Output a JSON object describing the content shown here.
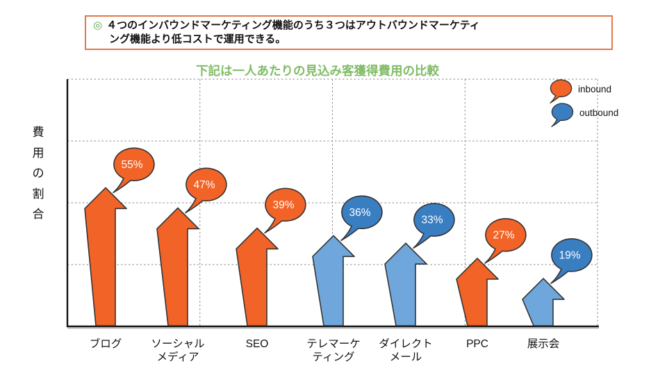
{
  "colors": {
    "inbound": "#F26327",
    "outbound_arrow": "#6FA7DC",
    "outbound_bubble": "#3A7EC2",
    "shape_outline": "#333333",
    "bubble_text": "#FFFFFF",
    "title_green": "#7FBC65",
    "bullet_green": "#55A647",
    "header_border": "#E0784A",
    "grid": "#8A8A8A",
    "axis": "#111111"
  },
  "header": {
    "bullet": "◎",
    "line1": "４つのインバウンドマーケティング機能のうち３つはアウトバウンドマーケティ",
    "line2": "ング機能より低コストで運用できる。"
  },
  "chart_data": {
    "type": "bar",
    "title": "下記は一人あたりの見込み客獲得費用の比較",
    "ylabel": "費用の割合",
    "xlabel": "",
    "unit": "%",
    "categories": [
      "ブログ",
      "ソーシャル\nメディア",
      "SEO",
      "テレマーケ\nティング",
      "ダイレクト\nメール",
      "PPC",
      "展示会"
    ],
    "values": [
      55,
      47,
      39,
      36,
      33,
      27,
      19
    ],
    "types": [
      "inbound",
      "inbound",
      "inbound",
      "outbound",
      "outbound",
      "inbound",
      "outbound"
    ],
    "series": [
      {
        "name": "inbound",
        "points": {
          "ブログ": 55,
          "ソーシャルメディア": 47,
          "SEO": 39,
          "PPC": 27
        }
      },
      {
        "name": "outbound",
        "points": {
          "テレマーケティング": 36,
          "ダイレクトメール": 33,
          "展示会": 19
        }
      }
    ],
    "legend": [
      {
        "label": "inbound"
      },
      {
        "label": "outbound"
      }
    ],
    "legend_position": "top-right",
    "gridlines": {
      "horizontal": 4,
      "vertical": 4,
      "style": "dashed"
    },
    "y_axis_tick_labels": "none"
  }
}
